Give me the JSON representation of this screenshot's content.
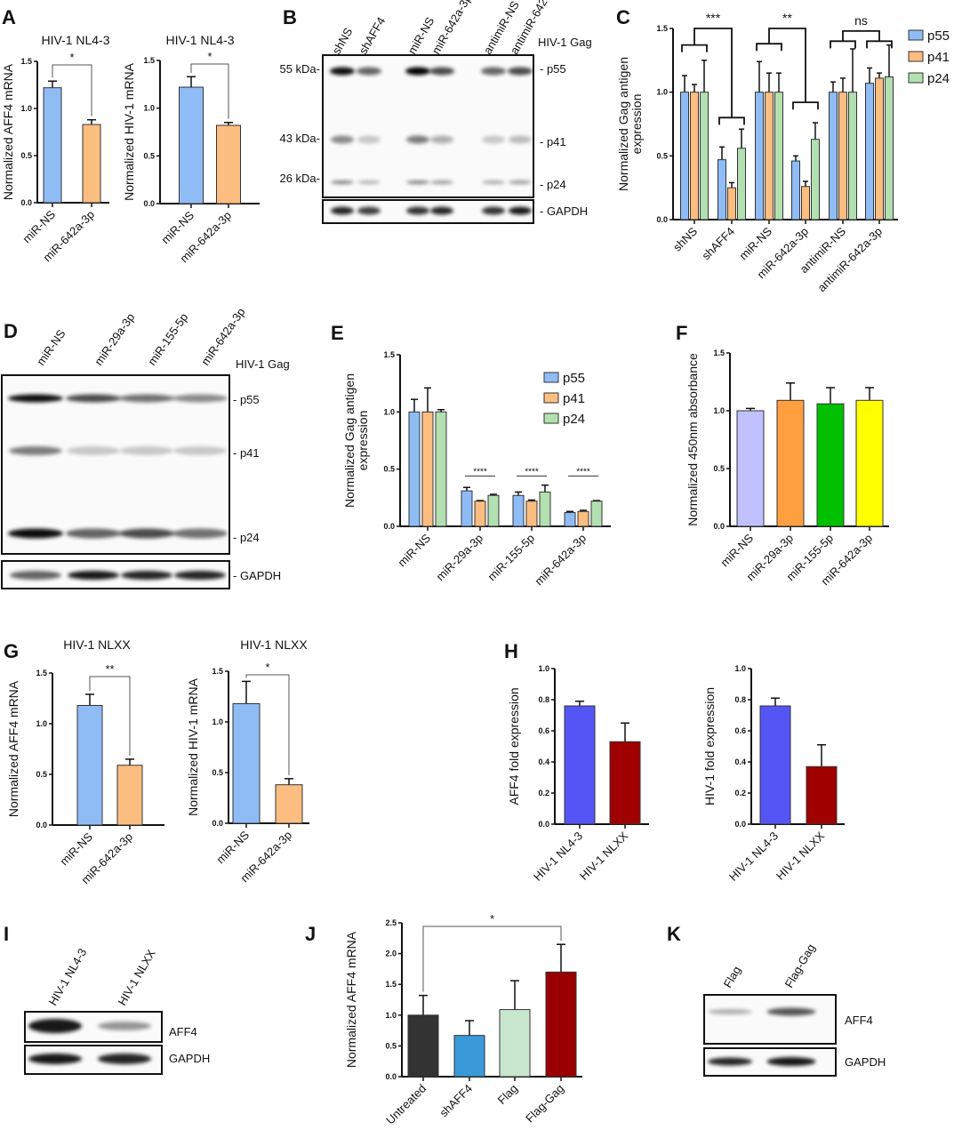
{
  "panels": {
    "A": "A",
    "B": "B",
    "C": "C",
    "D": "D",
    "E": "E",
    "F": "F",
    "G": "G",
    "H": "H",
    "I": "I",
    "J": "J",
    "K": "K"
  },
  "blots": {
    "B": {
      "lanes": [
        "shNS",
        "shAFF4",
        "miR-NS",
        "miR-642a-3p",
        "antimiR-NS",
        "antimiR-642a-3p"
      ],
      "markers": [
        "55 kDa-",
        "43 kDa-",
        "26 kDa-"
      ],
      "group_label": "HIV-1 Gag",
      "bands": [
        "- p55",
        "- p41",
        "- p24",
        "- GAPDH"
      ]
    },
    "D": {
      "lanes": [
        "miR-NS",
        "miR-29a-3p",
        "miR-155-5p",
        "miR-642a-3p"
      ],
      "group_label": "HIV-1 Gag",
      "bands": [
        "- p55",
        "- p41",
        "- p24",
        "- GAPDH"
      ]
    },
    "I": {
      "lanes": [
        "HIV-1 NL4-3",
        "HIV-1 NLXX"
      ],
      "bands": [
        "AFF4",
        "GAPDH"
      ]
    },
    "K": {
      "lanes": [
        "Flag",
        "Flag-Gag"
      ],
      "bands": [
        "AFF4",
        "GAPDH"
      ]
    }
  },
  "chart_data": [
    {
      "panel": "A",
      "type": "bar",
      "title": "HIV-1 NL4-3",
      "ylabel": [
        "Normalized AFF4 mRNA"
      ],
      "categories": [
        "miR-NS",
        "miR-642a-3p"
      ],
      "values": [
        1.22,
        0.83
      ],
      "errors": [
        0.07,
        0.05
      ],
      "bar_colors": [
        "#8fbcf5",
        "#fbbd80"
      ],
      "ylim": [
        0,
        1.5
      ],
      "yticks": [
        "0.0",
        "0.5",
        "1.0",
        "1.5"
      ],
      "significance": [
        {
          "label": "*",
          "from": 0,
          "to": 1
        }
      ]
    },
    {
      "panel": "A",
      "type": "bar",
      "title": "HIV-1 NL4-3",
      "ylabel": [
        "Normalized HIV-1 mRNA"
      ],
      "categories": [
        "miR-NS",
        "miR-642a-3p"
      ],
      "values": [
        1.22,
        0.82
      ],
      "errors": [
        0.11,
        0.03
      ],
      "bar_colors": [
        "#8fbcf5",
        "#fbbd80"
      ],
      "ylim": [
        0,
        1.5
      ],
      "yticks": [
        "0.0",
        "0.5",
        "1.0",
        "1.5"
      ],
      "significance": [
        {
          "label": "*",
          "from": 0,
          "to": 1
        }
      ]
    },
    {
      "panel": "C",
      "type": "bar",
      "ylabel": [
        "Normalized Gag antigen",
        "expression"
      ],
      "categories": [
        "shNS",
        "shAFF4",
        "miR-NS",
        "miR-642a-3p",
        "antimiR-NS",
        "antimiR-642a-3p"
      ],
      "series": [
        {
          "name": "p55",
          "color": "#8fbcf5",
          "values": [
            1.0,
            0.47,
            1.0,
            0.46,
            1.0,
            1.07
          ],
          "errors": [
            0.13,
            0.1,
            0.24,
            0.04,
            0.08,
            0.12
          ]
        },
        {
          "name": "p41",
          "color": "#fbbd80",
          "values": [
            1.0,
            0.25,
            1.0,
            0.26,
            1.0,
            1.11
          ],
          "errors": [
            0.06,
            0.04,
            0.15,
            0.04,
            0.11,
            0.04
          ]
        },
        {
          "name": "p24",
          "color": "#b3e0b0",
          "values": [
            1.0,
            0.56,
            1.0,
            0.63,
            1.0,
            1.12
          ],
          "errors": [
            0.25,
            0.15,
            0.15,
            0.13,
            0.34,
            0.25
          ]
        }
      ],
      "ylim": [
        0,
        1.5
      ],
      "yticks": [
        "0.0",
        "0.5",
        "1.0",
        "1.5"
      ],
      "legend": "right",
      "significance": [
        {
          "label": "***",
          "from": 0,
          "to": 1
        },
        {
          "label": "**",
          "from": 2,
          "to": 3
        },
        {
          "label": "ns",
          "from": 4,
          "to": 5
        }
      ]
    },
    {
      "panel": "E",
      "type": "bar",
      "ylabel": [
        "Normalized Gag antigen",
        "expression"
      ],
      "categories": [
        "miR-NS",
        "miR-29a-3p",
        "miR-155-5p",
        "miR-642a-3p"
      ],
      "series": [
        {
          "name": "p55",
          "color": "#8fbcf5",
          "values": [
            1.0,
            0.31,
            0.27,
            0.12
          ],
          "errors": [
            0.11,
            0.03,
            0.03,
            0.01
          ]
        },
        {
          "name": "p41",
          "color": "#fbbd80",
          "values": [
            1.0,
            0.22,
            0.22,
            0.13
          ],
          "errors": [
            0.21,
            0.005,
            0.01,
            0.01
          ]
        },
        {
          "name": "p24",
          "color": "#b3e0b0",
          "values": [
            1.0,
            0.27,
            0.3,
            0.22
          ],
          "errors": [
            0.02,
            0.01,
            0.06,
            0.005
          ]
        }
      ],
      "ylim": [
        0,
        1.5
      ],
      "yticks": [
        "0.0",
        "0.5",
        "1.0",
        "1.5"
      ],
      "legend": "top-right",
      "significance": [
        {
          "label": "****",
          "group": 1
        },
        {
          "label": "****",
          "group": 2
        },
        {
          "label": "****",
          "group": 3
        }
      ]
    },
    {
      "panel": "F",
      "type": "bar",
      "ylabel": [
        "Normalized 450nm absorbance"
      ],
      "categories": [
        "miR-NS",
        "miR-29a-3p",
        "miR-155-5p",
        "miR-642a-3p"
      ],
      "values": [
        1.0,
        1.09,
        1.06,
        1.09
      ],
      "errors": [
        0.02,
        0.15,
        0.14,
        0.11
      ],
      "bar_colors": [
        "#c0c0ff",
        "#ff9f40",
        "#00c000",
        "#ffff00"
      ],
      "ylim": [
        0,
        1.5
      ],
      "yticks": [
        "0.0",
        "0.5",
        "1.0",
        "1.5"
      ]
    },
    {
      "panel": "G",
      "type": "bar",
      "title": "HIV-1 NLXX",
      "ylabel": [
        "Normalized AFF4 mRNA"
      ],
      "categories": [
        "miR-NS",
        "miR-642a-3p"
      ],
      "values": [
        1.18,
        0.59
      ],
      "errors": [
        0.11,
        0.06
      ],
      "bar_colors": [
        "#8fbcf5",
        "#fbbd80"
      ],
      "ylim": [
        0,
        1.5
      ],
      "yticks": [
        "0.0",
        "0.5",
        "1.0",
        "1.5"
      ],
      "significance": [
        {
          "label": "**",
          "from": 0,
          "to": 1
        }
      ]
    },
    {
      "panel": "G",
      "type": "bar",
      "title": "HIV-1 NLXX",
      "ylabel": [
        "Normalized HIV-1 mRNA"
      ],
      "categories": [
        "miR-NS",
        "miR-642a-3p"
      ],
      "values": [
        1.18,
        0.38
      ],
      "errors": [
        0.22,
        0.06
      ],
      "bar_colors": [
        "#8fbcf5",
        "#fbbd80"
      ],
      "ylim": [
        0,
        1.5
      ],
      "yticks": [
        "0.0",
        "0.5",
        "1.0",
        "1.5"
      ],
      "significance": [
        {
          "label": "*",
          "from": 0,
          "to": 1
        }
      ]
    },
    {
      "panel": "H",
      "type": "bar",
      "ylabel": [
        "AFF4 fold expression"
      ],
      "categories": [
        "HIV-1 NL4-3",
        "HIV-1 NLXX"
      ],
      "values": [
        0.76,
        0.53
      ],
      "errors": [
        0.03,
        0.12
      ],
      "bar_colors": [
        "#5555f5",
        "#a00000"
      ],
      "ylim": [
        0,
        1.0
      ],
      "yticks": [
        "0.0",
        "0.2",
        "0.4",
        "0.6",
        "0.8",
        "1.0"
      ]
    },
    {
      "panel": "H",
      "type": "bar",
      "ylabel": [
        "HIV-1 fold expression"
      ],
      "categories": [
        "HIV-1 NL4-3",
        "HIV-1 NLXX"
      ],
      "values": [
        0.76,
        0.37
      ],
      "errors": [
        0.05,
        0.14
      ],
      "bar_colors": [
        "#5555f5",
        "#a00000"
      ],
      "ylim": [
        0,
        1.0
      ],
      "yticks": [
        "0.0",
        "0.2",
        "0.4",
        "0.6",
        "0.8",
        "1.0"
      ]
    },
    {
      "panel": "J",
      "type": "bar",
      "ylabel": [
        "Normalized AFF4 mRNA"
      ],
      "categories": [
        "Untreated",
        "shAFF4",
        "Flag",
        "Flag-Gag"
      ],
      "values": [
        1.0,
        0.67,
        1.09,
        1.7
      ],
      "errors": [
        0.32,
        0.24,
        0.47,
        0.45
      ],
      "bar_colors": [
        "#333333",
        "#3a9ad9",
        "#c9e6cf",
        "#9b0000"
      ],
      "ylim": [
        0,
        2.5
      ],
      "yticks": [
        "0.0",
        "0.5",
        "1.0",
        "1.5",
        "2.0",
        "2.5"
      ],
      "significance": [
        {
          "label": "*",
          "from": 0,
          "to": 3
        }
      ]
    }
  ]
}
